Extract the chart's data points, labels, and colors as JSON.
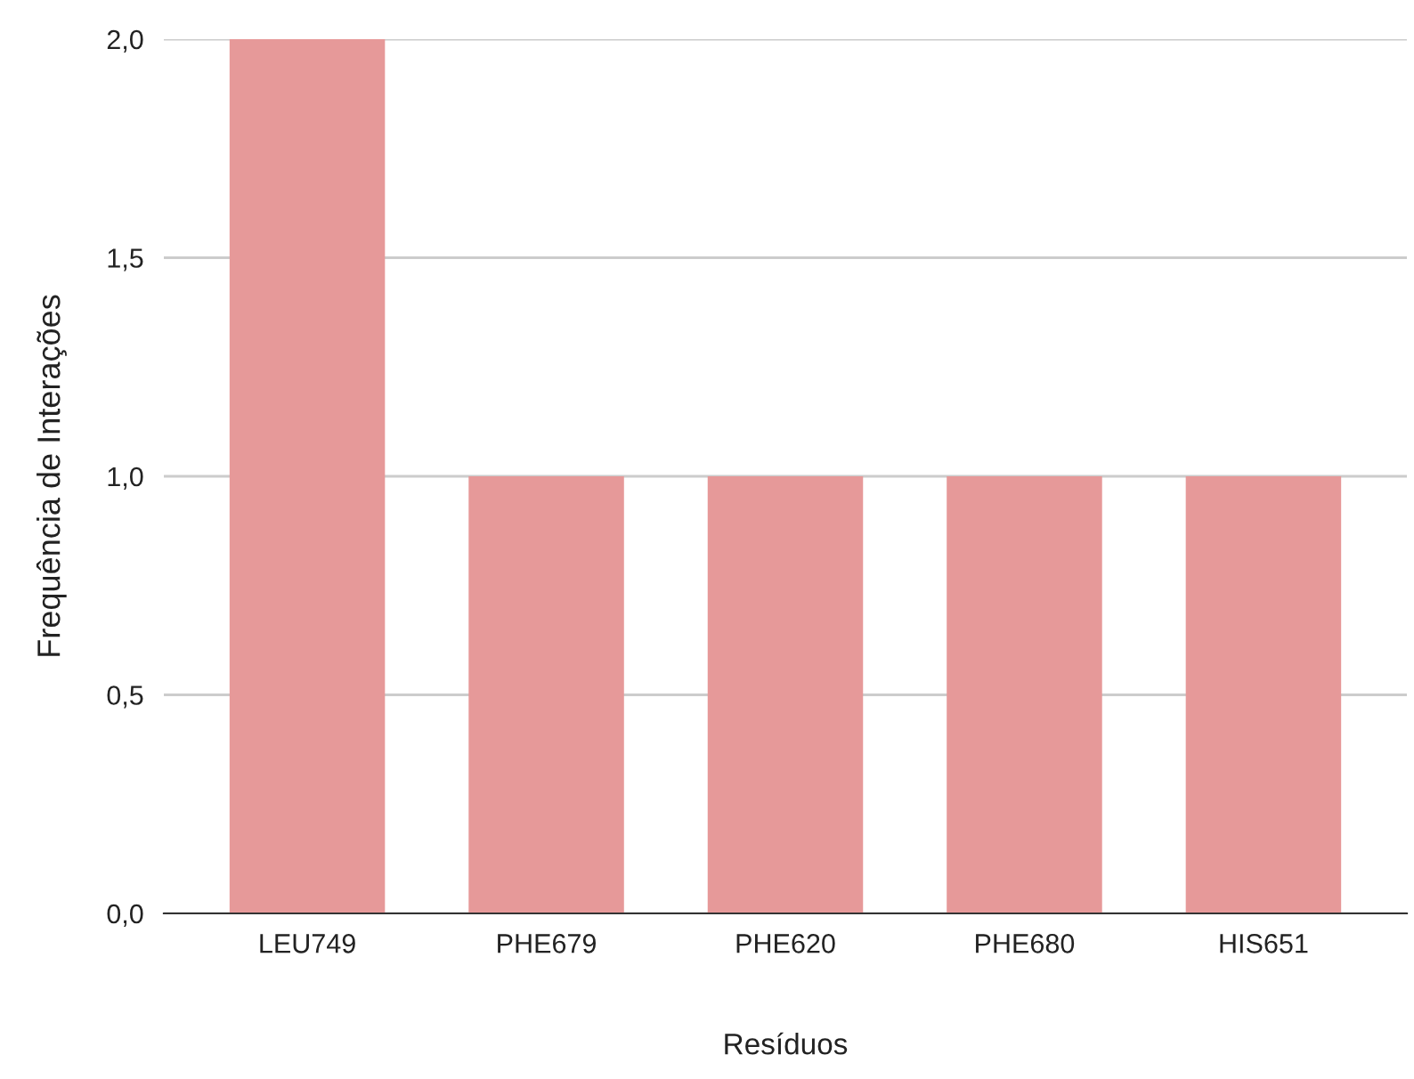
{
  "chart_data": {
    "type": "bar",
    "xlabel": "Resíduos",
    "ylabel": "Frequência de Interações",
    "categories": [
      "LEU749",
      "PHE679",
      "PHE620",
      "PHE680",
      "HIS651"
    ],
    "values": [
      2,
      1,
      1,
      1,
      1
    ],
    "color": "#e69999",
    "ylim": [
      0,
      2
    ],
    "yticks": [
      {
        "value": 0,
        "label": "0,0"
      },
      {
        "value": 0.5,
        "label": "0,5"
      },
      {
        "value": 1,
        "label": "1,0"
      },
      {
        "value": 1.5,
        "label": "1,5"
      },
      {
        "value": 2,
        "label": "2,0"
      }
    ],
    "grid": "y"
  }
}
